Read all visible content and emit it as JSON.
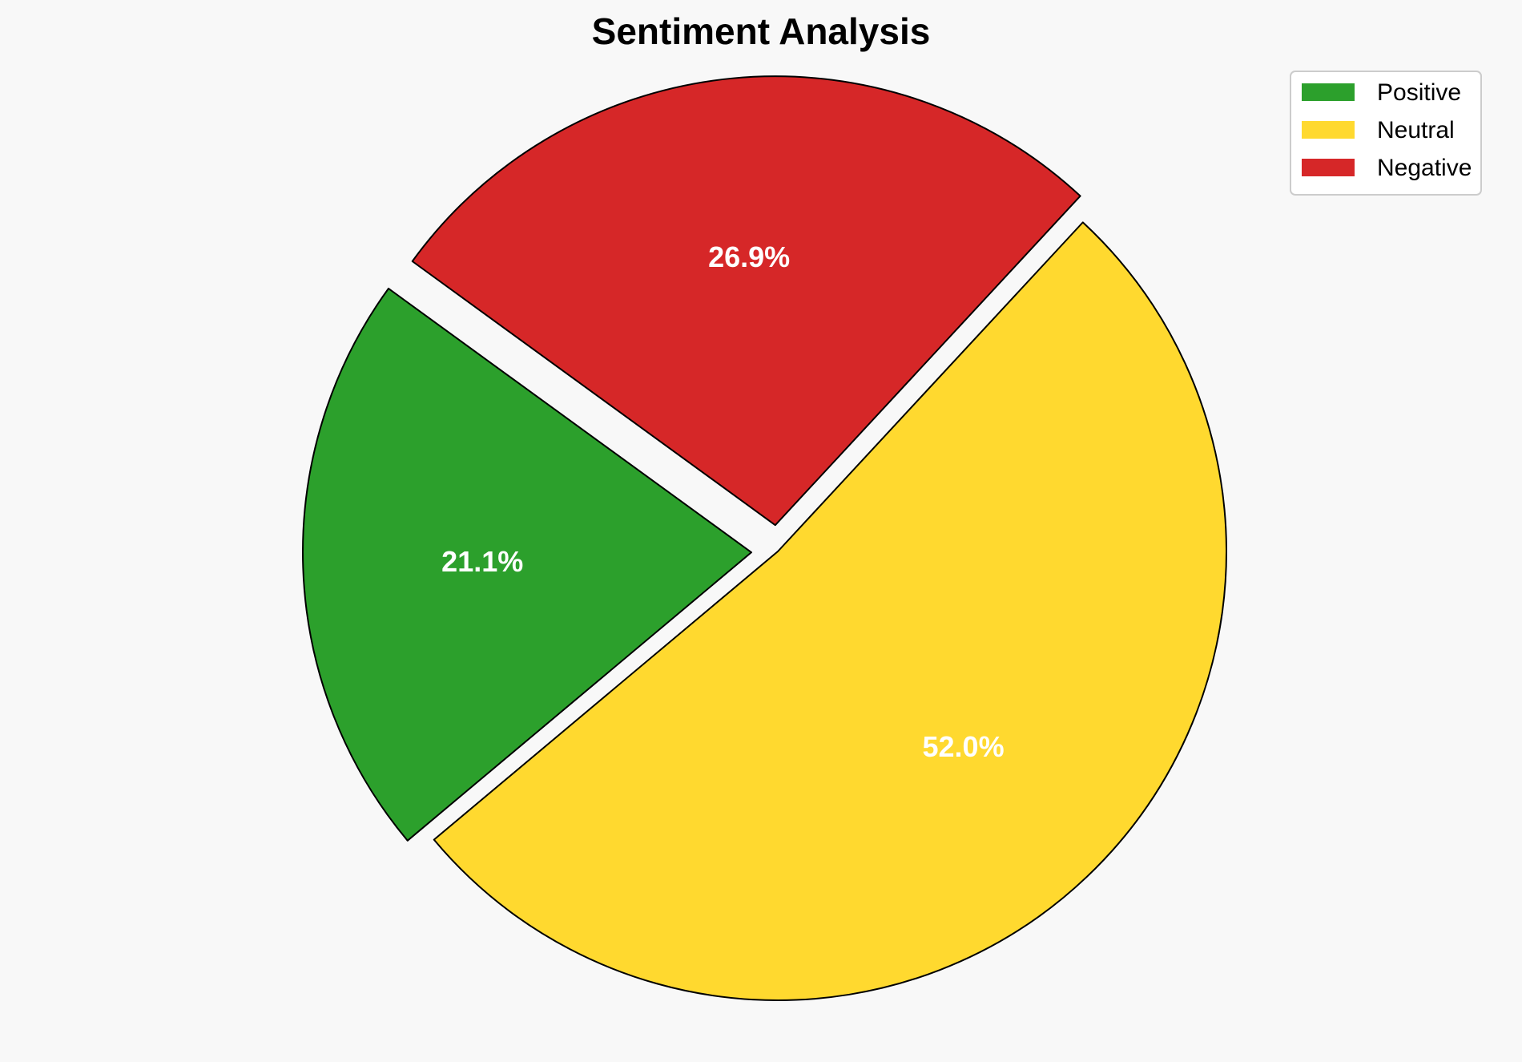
{
  "chart_data": {
    "type": "pie",
    "title": "Sentiment Analysis",
    "categories": [
      "Positive",
      "Neutral",
      "Negative"
    ],
    "values": [
      21.1,
      52.0,
      26.9
    ],
    "labels": [
      "21.1%",
      "52.0%",
      "26.9%"
    ],
    "colors": [
      "#2ca02c",
      "#ffd92f",
      "#d62728"
    ],
    "exploded": [
      true,
      false,
      true
    ],
    "start_angle_deg": 144,
    "direction": "counterclockwise",
    "legend_position": "top-right",
    "edge_color": "#000000"
  }
}
